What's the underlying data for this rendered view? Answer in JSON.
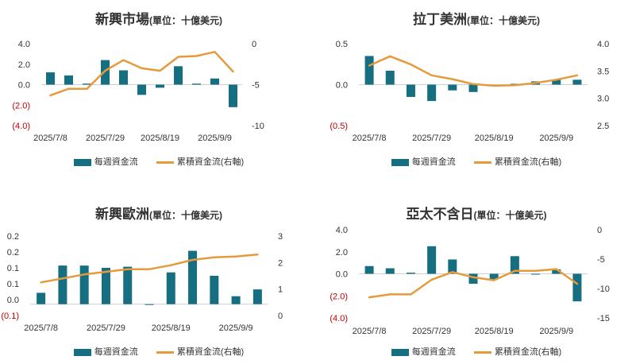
{
  "colors": {
    "bar": "#156f80",
    "line": "#e59a3c",
    "negative_label": "#c00000",
    "axis": "#d0d0d0",
    "text": "#333333"
  },
  "legend": {
    "bar_label": "每週資金流",
    "line_label": "累積資金流(右軸)"
  },
  "chart_data": [
    {
      "type": "bar",
      "title": "新興市場",
      "subtitle": "(單位：十億美元)",
      "x_tick_labels": [
        "2025/7/8",
        "2025/7/29",
        "2025/8/19",
        "2025/9/9"
      ],
      "left_axis": {
        "ticks": [
          "4.0",
          "2.0",
          "0.0",
          "(2.0)",
          "(4.0)"
        ],
        "ylim": [
          -4,
          4
        ]
      },
      "right_axis": {
        "ticks": [
          "0",
          "-5",
          "-10"
        ],
        "ylim": [
          -10,
          0
        ]
      },
      "series": [
        {
          "name": "每週資金流",
          "kind": "bar",
          "axis": "left",
          "values": [
            1.2,
            0.9,
            0.1,
            2.4,
            1.4,
            -1.0,
            -0.3,
            1.8,
            0.1,
            0.6,
            -2.2
          ]
        },
        {
          "name": "累積資金流(右軸)",
          "kind": "line",
          "axis": "right",
          "values": [
            -6.3,
            -5.5,
            -5.5,
            -3.3,
            -2.0,
            -3.0,
            -3.3,
            -1.6,
            -1.5,
            -1.0,
            -3.4
          ]
        }
      ]
    },
    {
      "type": "bar",
      "title": "拉丁美洲",
      "subtitle": "(單位：十億美元)",
      "x_tick_labels": [
        "2025/7/8",
        "2025/7/29",
        "2025/8/19",
        "2025/9/9"
      ],
      "left_axis": {
        "ticks": [
          "0.5",
          "0.0",
          "(0.5)"
        ],
        "ylim": [
          -0.5,
          0.5
        ]
      },
      "right_axis": {
        "ticks": [
          "4.0",
          "3.5",
          "3.0",
          "2.5"
        ],
        "ylim": [
          2.5,
          4.0
        ]
      },
      "series": [
        {
          "name": "每週資金流",
          "kind": "bar",
          "axis": "left",
          "values": [
            0.35,
            0.17,
            -0.15,
            -0.2,
            -0.07,
            -0.09,
            -0.02,
            0.01,
            0.04,
            0.06,
            0.06
          ]
        },
        {
          "name": "累積資金流(右軸)",
          "kind": "line",
          "axis": "right",
          "values": [
            3.6,
            3.77,
            3.62,
            3.42,
            3.35,
            3.26,
            3.23,
            3.24,
            3.28,
            3.34,
            3.42
          ]
        }
      ]
    },
    {
      "type": "bar",
      "title": "新興歐洲",
      "subtitle": "(單位：十億美元)",
      "x_tick_labels": [
        "2025/7/8",
        "2025/7/29",
        "2025/8/19",
        "2025/9/9"
      ],
      "left_axis": {
        "ticks": [
          "0.2",
          "0.2",
          "0.1",
          "0.1",
          "0.0",
          "(0.1)"
        ],
        "ylim": [
          -0.05,
          0.3
        ]
      },
      "right_axis": {
        "ticks": [
          "3",
          "2",
          "1",
          "0"
        ],
        "ylim": [
          0,
          3
        ]
      },
      "series": [
        {
          "name": "每週資金流",
          "kind": "bar",
          "axis": "left",
          "values": [
            0.05,
            0.17,
            0.17,
            0.16,
            0.165,
            -0.002,
            0.14,
            0.235,
            0.125,
            0.035,
            0.065
          ]
        },
        {
          "name": "累積資金流(右軸)",
          "kind": "line",
          "axis": "right",
          "values": [
            1.25,
            1.4,
            1.55,
            1.65,
            1.75,
            1.75,
            1.9,
            2.1,
            2.2,
            2.23,
            2.3
          ]
        }
      ]
    },
    {
      "type": "bar",
      "title": "亞太不含日",
      "subtitle": "(單位：十億美元)",
      "x_tick_labels": [
        "2025/7/8",
        "2025/7/29",
        "2025/8/19",
        "2025/9/9"
      ],
      "left_axis": {
        "ticks": [
          "4.0",
          "2.0",
          "0.0",
          "(2.0)",
          "(4.0)"
        ],
        "ylim": [
          -4,
          4
        ]
      },
      "right_axis": {
        "ticks": [
          "0",
          "-5",
          "-10",
          "-15"
        ],
        "ylim": [
          -15,
          0
        ]
      },
      "series": [
        {
          "name": "每週資金流",
          "kind": "bar",
          "axis": "left",
          "values": [
            0.7,
            0.5,
            0.1,
            2.5,
            1.3,
            -0.9,
            -0.5,
            1.6,
            0.0,
            0.4,
            -2.5
          ]
        },
        {
          "name": "累積資金流(右軸)",
          "kind": "line",
          "axis": "right",
          "values": [
            -11.5,
            -11.0,
            -11.0,
            -8.5,
            -7.2,
            -8.1,
            -8.6,
            -7.0,
            -7.0,
            -6.7,
            -9.2
          ]
        }
      ]
    }
  ]
}
